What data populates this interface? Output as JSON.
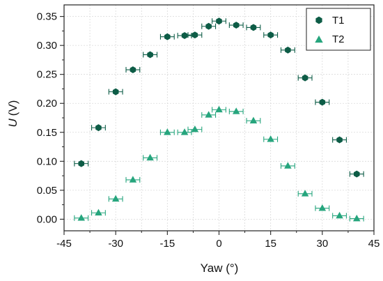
{
  "chart_data": {
    "type": "scatter",
    "xlabel": "Yaw (°)",
    "ylabel_symbol": "U",
    "ylabel_unit": "(V)",
    "xlim": [
      -45,
      45
    ],
    "ylim": [
      -0.02,
      0.37
    ],
    "xticks": [
      -45,
      -30,
      -15,
      0,
      15,
      30,
      45
    ],
    "xticks_minor": [
      -37.5,
      -22.5,
      -7.5,
      7.5,
      22.5,
      37.5
    ],
    "yticks": [
      0.0,
      0.05,
      0.1,
      0.15,
      0.2,
      0.25,
      0.3,
      0.35
    ],
    "ytick_labels": [
      "0.00",
      "0.05",
      "0.10",
      "0.15",
      "0.20",
      "0.25",
      "0.30",
      "0.35"
    ],
    "xtick_labels": [
      "-45",
      "-30",
      "-15",
      "0",
      "15",
      "30",
      "45"
    ],
    "x_error": 2,
    "grid": true,
    "legend_position": "top-right",
    "series": [
      {
        "name": "T1",
        "marker": "hexagon",
        "color": "#0d5c46",
        "x": [
          -40,
          -35,
          -30,
          -25,
          -20,
          -15,
          -10,
          -7,
          -3,
          0,
          5,
          10,
          15,
          20,
          25,
          30,
          35,
          40
        ],
        "y": [
          0.096,
          0.158,
          0.22,
          0.258,
          0.284,
          0.315,
          0.317,
          0.318,
          0.333,
          0.342,
          0.335,
          0.331,
          0.318,
          0.292,
          0.244,
          0.202,
          0.137,
          0.078
        ]
      },
      {
        "name": "T2",
        "marker": "triangle",
        "color": "#26a57d",
        "x": [
          -40,
          -35,
          -30,
          -25,
          -20,
          -15,
          -10,
          -7,
          -3,
          0,
          5,
          10,
          15,
          20,
          25,
          30,
          35,
          40
        ],
        "y": [
          0.002,
          0.011,
          0.035,
          0.068,
          0.106,
          0.15,
          0.15,
          0.155,
          0.18,
          0.189,
          0.186,
          0.17,
          0.138,
          0.092,
          0.044,
          0.019,
          0.006,
          0.001
        ]
      }
    ]
  }
}
